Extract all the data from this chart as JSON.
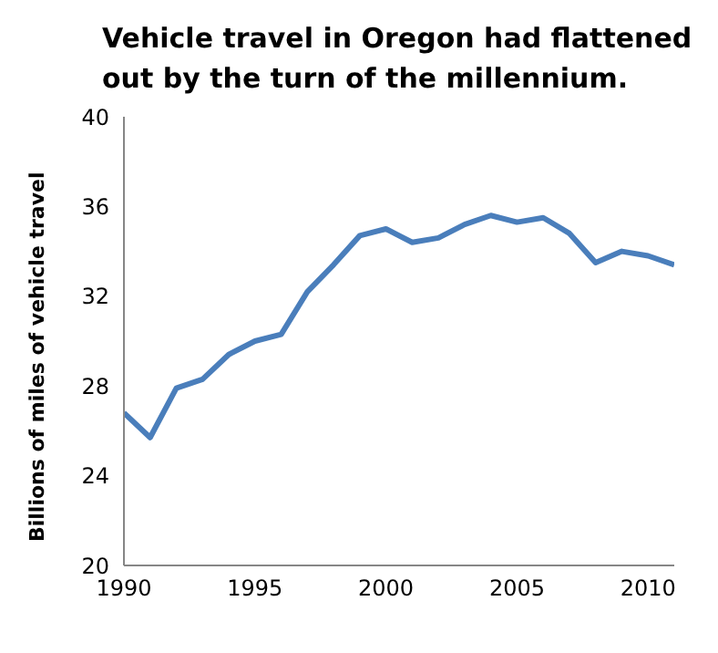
{
  "chart_data": {
    "type": "line",
    "title": "Vehicle travel in Oregon had flattened out by the turn of the millennium.",
    "ylabel": "Billions of miles of vehicle travel",
    "x": [
      1990,
      1991,
      1992,
      1993,
      1994,
      1995,
      1996,
      1997,
      1998,
      1999,
      2000,
      2001,
      2002,
      2003,
      2004,
      2005,
      2006,
      2007,
      2008,
      2009,
      2010,
      2011
    ],
    "series": [
      {
        "color": "#4a7ebb",
        "values": [
          26.8,
          25.7,
          27.9,
          28.3,
          29.4,
          30.0,
          30.3,
          32.2,
          33.4,
          34.7,
          35.0,
          34.4,
          34.6,
          35.2,
          35.6,
          35.3,
          35.5,
          34.8,
          33.5,
          34.0,
          33.8,
          33.4
        ]
      }
    ],
    "xlim": [
      1990,
      2011
    ],
    "xticks": [
      1990,
      1995,
      2000,
      2005,
      2010
    ],
    "ylim": [
      20,
      40
    ],
    "yticks": [
      20,
      24,
      28,
      32,
      36,
      40
    ],
    "grid": false,
    "legend": false,
    "marker": "none",
    "line_style": "solid"
  }
}
